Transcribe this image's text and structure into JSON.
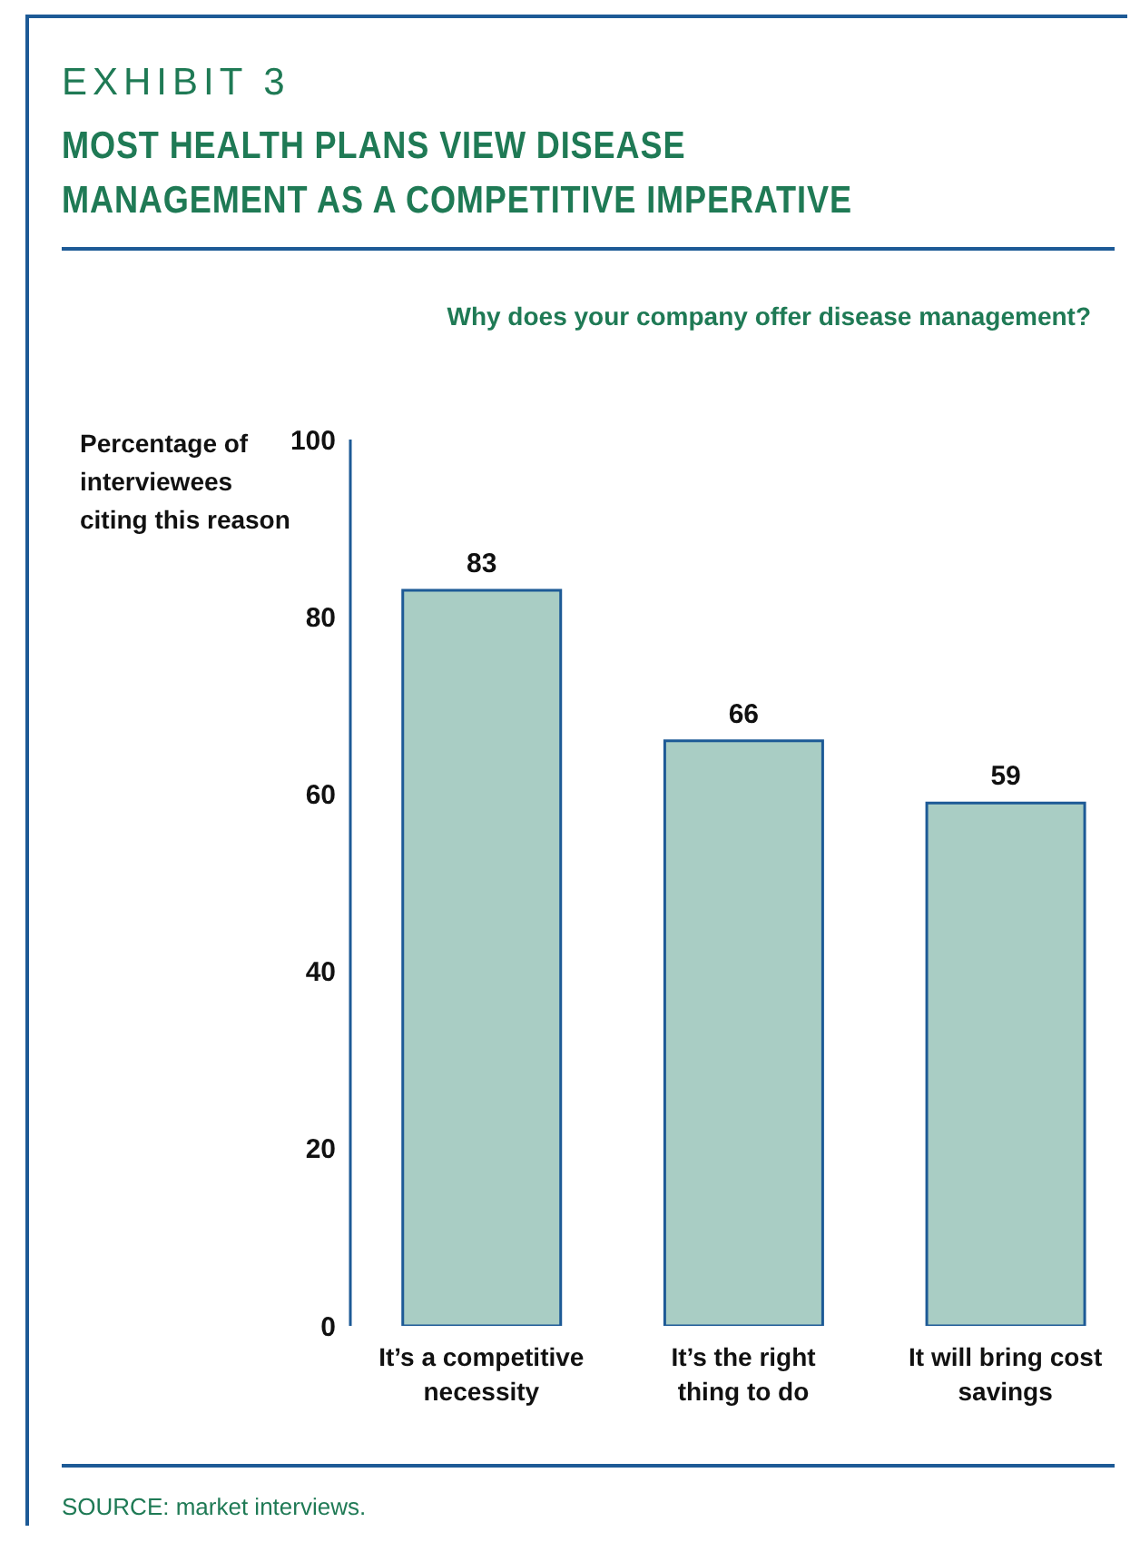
{
  "chart_data": {
    "type": "bar",
    "title": "MOST HEALTH PLANS VIEW DISEASE MANAGEMENT AS A COMPETITIVE IMPERATIVE",
    "subtitle": "Why does your company offer disease management?",
    "ylabel": "Percentage of interviewees citing this reason",
    "annotations": [
      "EXHIBIT 3",
      "SOURCE: market interviews."
    ],
    "categories": [
      "It’s a competitive necessity",
      "It’s the right thing to do",
      "It will bring cost savings"
    ],
    "values": [
      83,
      66,
      59
    ],
    "color": "#a9cdc4",
    "data_labels": true,
    "ylim": [
      0,
      100
    ],
    "yticks": [
      0,
      20,
      40,
      60,
      80,
      100
    ],
    "grid": false,
    "legend": false
  }
}
